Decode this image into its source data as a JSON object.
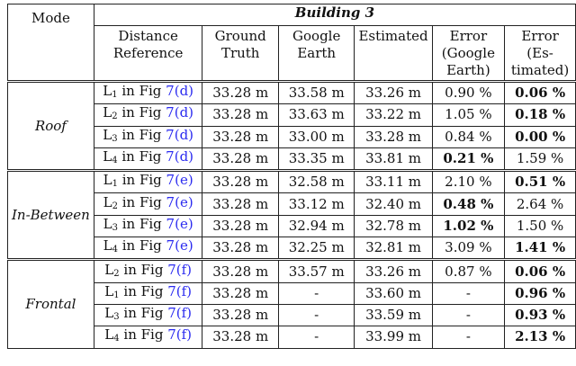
{
  "header": {
    "mode": "Mode",
    "building": "Building 3",
    "columns": [
      "Distance Reference",
      "Ground Truth",
      "Google Earth",
      "Estimated",
      "Error (Google Earth)",
      "Error (Es- timated)"
    ]
  },
  "groups": [
    {
      "mode": "Roof",
      "rows": [
        {
          "l": "L",
          "sub": "1",
          "fig": " in Fig ",
          "ref": "7(d)",
          "gt": "33.28 m",
          "ge": "33.58 m",
          "est": "33.26 m",
          "err_ge": "0.90 %",
          "err_est": "0.06 %",
          "bold": "est"
        },
        {
          "l": "L",
          "sub": "2",
          "fig": " in Fig ",
          "ref": "7(d)",
          "gt": "33.28 m",
          "ge": "33.63 m",
          "est": "33.22 m",
          "err_ge": "1.05 %",
          "err_est": "0.18 %",
          "bold": "est"
        },
        {
          "l": "L",
          "sub": "3",
          "fig": " in Fig ",
          "ref": "7(d)",
          "gt": "33.28 m",
          "ge": "33.00 m",
          "est": "33.28 m",
          "err_ge": "0.84 %",
          "err_est": "0.00 %",
          "bold": "est"
        },
        {
          "l": "L",
          "sub": "4",
          "fig": " in Fig ",
          "ref": "7(d)",
          "gt": "33.28 m",
          "ge": "33.35 m",
          "est": "33.81 m",
          "err_ge": "0.21 %",
          "err_est": "1.59 %",
          "bold": "ge"
        }
      ]
    },
    {
      "mode": "In-Between",
      "rows": [
        {
          "l": "L",
          "sub": "1",
          "fig": " in Fig ",
          "ref": "7(e)",
          "gt": "33.28 m",
          "ge": "32.58 m",
          "est": "33.11 m",
          "err_ge": "2.10 %",
          "err_est": "0.51 %",
          "bold": "est"
        },
        {
          "l": "L",
          "sub": "2",
          "fig": " in Fig ",
          "ref": "7(e)",
          "gt": "33.28 m",
          "ge": "33.12 m",
          "est": "32.40 m",
          "err_ge": "0.48 %",
          "err_est": "2.64 %",
          "bold": "ge"
        },
        {
          "l": "L",
          "sub": "3",
          "fig": " in Fig ",
          "ref": "7(e)",
          "gt": "33.28 m",
          "ge": "32.94 m",
          "est": "32.78 m",
          "err_ge": "1.02 %",
          "err_est": "1.50 %",
          "bold": "ge"
        },
        {
          "l": "L",
          "sub": "4",
          "fig": " in Fig ",
          "ref": "7(e)",
          "gt": "33.28 m",
          "ge": "32.25 m",
          "est": "32.81 m",
          "err_ge": "3.09 %",
          "err_est": "1.41 %",
          "bold": "est"
        }
      ]
    },
    {
      "mode": "Frontal",
      "rows": [
        {
          "l": "L",
          "sub": "2",
          "fig": " in Fig ",
          "ref": "7(f)",
          "gt": "33.28 m",
          "ge": "33.57 m",
          "est": "33.26 m",
          "err_ge": "0.87 %",
          "err_est": "0.06 %",
          "bold": "est"
        },
        {
          "l": "L",
          "sub": "1",
          "fig": " in Fig ",
          "ref": "7(f)",
          "gt": "33.28 m",
          "ge": "-",
          "est": "33.60 m",
          "err_ge": "-",
          "err_est": "0.96 %",
          "bold": "est"
        },
        {
          "l": "L",
          "sub": "3",
          "fig": " in Fig ",
          "ref": "7(f)",
          "gt": "33.28 m",
          "ge": "-",
          "est": "33.59 m",
          "err_ge": "-",
          "err_est": "0.93 %",
          "bold": "est"
        },
        {
          "l": "L",
          "sub": "4",
          "fig": " in Fig ",
          "ref": "7(f)",
          "gt": "33.28 m",
          "ge": "-",
          "est": "33.99 m",
          "err_ge": "-",
          "err_est": "2.13 %",
          "bold": "est"
        }
      ]
    }
  ],
  "colors": {
    "link": "#2b2bf0"
  }
}
